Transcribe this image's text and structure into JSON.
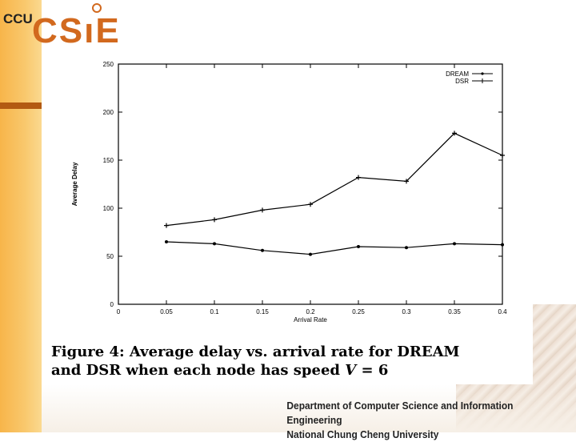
{
  "logo": {
    "ccu": "CCU",
    "csie": "CSıE"
  },
  "caption": {
    "line1": "Figure 4:  Average delay vs. arrival rate for DREAM",
    "line2_prefix": "and DSR when each node has speed ",
    "line2_var": "V",
    "line2_suffix": " = 6"
  },
  "footer": {
    "line1": "Department of Computer Science and Information Engineering",
    "line2": "National Chung Cheng University"
  },
  "chart_data": {
    "type": "line",
    "title": "",
    "xlabel": "Arrival Rate",
    "ylabel": "Average Delay",
    "xlim": [
      0,
      0.4
    ],
    "ylim": [
      0,
      250
    ],
    "xticks": [
      "0",
      "0.05",
      "0.1",
      "0.15",
      "0.2",
      "0.25",
      "0.3",
      "0.35",
      "0.4"
    ],
    "yticks": [
      "0",
      "50",
      "100",
      "150",
      "200",
      "250"
    ],
    "x": [
      0.05,
      0.1,
      0.15,
      0.2,
      0.25,
      0.3,
      0.35,
      0.4
    ],
    "series": [
      {
        "name": "DREAM",
        "values": [
          65,
          63,
          56,
          52,
          60,
          59,
          63,
          62
        ]
      },
      {
        "name": "DSR",
        "values": [
          82,
          88,
          98,
          104,
          132,
          128,
          178,
          155
        ]
      }
    ],
    "legend": "top-right",
    "grid": false
  }
}
